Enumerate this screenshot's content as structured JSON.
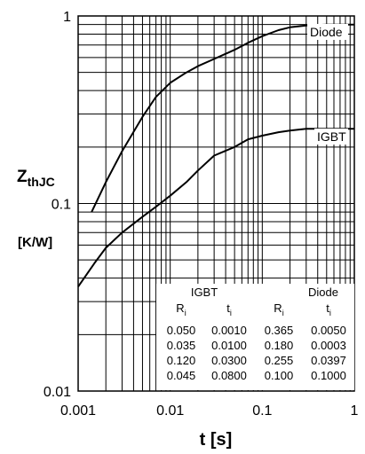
{
  "chart_data": {
    "type": "line",
    "title": "",
    "xlabel": "t  [s]",
    "ylabel": "ZthJC",
    "ylabel_main": "Z",
    "ylabel_sub": "thJC",
    "yunit": "[K/W]",
    "xscale": "log",
    "yscale": "log",
    "xlim": [
      0.001,
      1
    ],
    "ylim": [
      0.01,
      1
    ],
    "grid": true,
    "x_ticks": [
      "0.001",
      "0.01",
      "0.1",
      "1"
    ],
    "y_ticks": [
      "0.01",
      "0.1",
      "1"
    ],
    "series": [
      {
        "name": "Diode",
        "x": [
          0.0014,
          0.002,
          0.003,
          0.005,
          0.007,
          0.01,
          0.015,
          0.02,
          0.03,
          0.05,
          0.07,
          0.1,
          0.15,
          0.2,
          0.3,
          0.5,
          1
        ],
        "y": [
          0.09,
          0.13,
          0.19,
          0.29,
          0.37,
          0.44,
          0.5,
          0.54,
          0.59,
          0.66,
          0.72,
          0.78,
          0.84,
          0.87,
          0.89,
          0.9,
          0.9
        ]
      },
      {
        "name": "IGBT",
        "x": [
          0.001,
          0.0015,
          0.002,
          0.003,
          0.005,
          0.007,
          0.01,
          0.015,
          0.02,
          0.03,
          0.05,
          0.07,
          0.1,
          0.15,
          0.2,
          0.3,
          0.5,
          1
        ],
        "y": [
          0.036,
          0.048,
          0.058,
          0.07,
          0.085,
          0.096,
          0.11,
          0.13,
          0.15,
          0.18,
          0.2,
          0.22,
          0.23,
          0.24,
          0.245,
          0.25,
          0.25,
          0.25
        ]
      }
    ],
    "table": {
      "groups": [
        "IGBT",
        "Diode"
      ],
      "headers": [
        "R",
        "t",
        "R",
        "t"
      ],
      "header_sub": "i",
      "rows": [
        [
          "0.050",
          "0.0010",
          "0.365",
          "0.0050"
        ],
        [
          "0.035",
          "0.0100",
          "0.180",
          "0.0003"
        ],
        [
          "0.120",
          "0.0300",
          "0.255",
          "0.0397"
        ],
        [
          "0.045",
          "0.0800",
          "0.100",
          "0.1000"
        ]
      ]
    }
  }
}
